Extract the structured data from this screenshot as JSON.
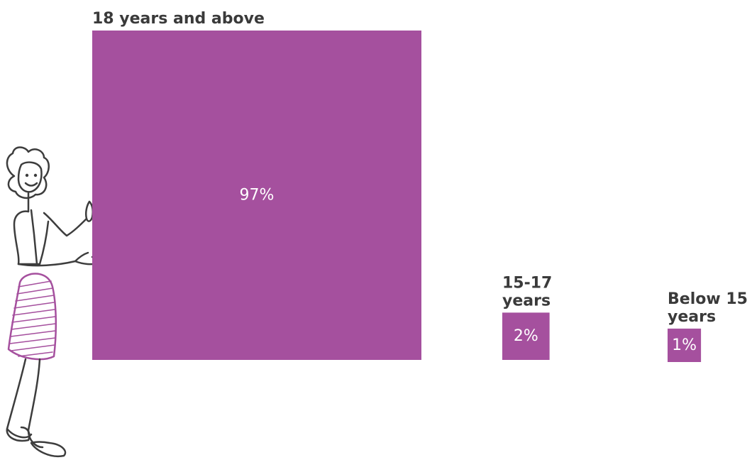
{
  "chart_data": {
    "type": "bar",
    "categories": [
      "18 years and above",
      "15-17 years",
      "Below 15 years"
    ],
    "values": [
      97,
      2,
      1
    ],
    "value_labels": [
      "97%",
      "2%",
      "1%"
    ],
    "label_lines": [
      [
        "18 years and above"
      ],
      [
        "15-17",
        "years"
      ],
      [
        "Below 15",
        "years"
      ]
    ],
    "unit": "%",
    "title": "",
    "xlabel": "",
    "ylabel": "",
    "legend": "none",
    "grid": false
  },
  "colors": {
    "bar": "#a5509e",
    "text_dark": "#3a3a3a",
    "text_on_bar": "#ffffff",
    "figure_stroke": "#3d3d3d",
    "figure_accent": "#a5509e"
  },
  "icons": [
    "person-pointing-icon"
  ]
}
